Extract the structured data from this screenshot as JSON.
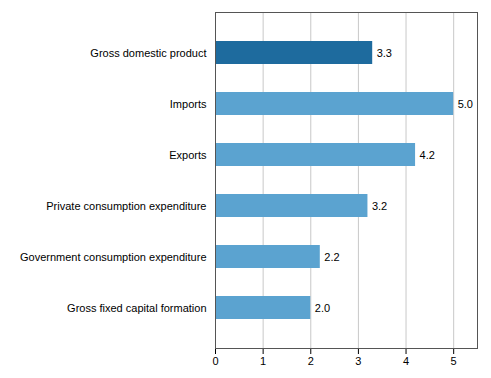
{
  "chart_data": {
    "type": "bar",
    "orientation": "horizontal",
    "categories": [
      "Gross fixed capital formation",
      "Government consumption expenditure",
      "Private consumption expenditure",
      "Exports",
      "Imports",
      "Gross domestic product"
    ],
    "values": [
      2.0,
      2.2,
      3.2,
      4.2,
      5.0,
      3.3
    ],
    "value_labels": [
      "2.0",
      "2.2",
      "3.2",
      "4.2",
      "5.0",
      "3.3"
    ],
    "colors": [
      "#5ba3d0",
      "#5ba3d0",
      "#5ba3d0",
      "#5ba3d0",
      "#5ba3d0",
      "#1e6b9e"
    ],
    "xlim": [
      0,
      5.5
    ],
    "xticks": [
      0,
      1,
      2,
      3,
      4,
      5
    ],
    "grid": true,
    "data_labels": true
  }
}
